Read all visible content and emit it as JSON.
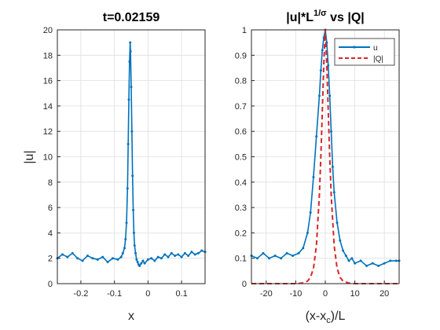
{
  "colors": {
    "series_u": "#0072BD",
    "series_q": "#D62728",
    "axis": "#262626",
    "grid": "#dfdfdf"
  },
  "chart_data": [
    {
      "type": "line",
      "title": "t=0.02159",
      "xlabel": "x",
      "ylabel": "|u|",
      "xlim": [
        -0.27,
        0.17
      ],
      "ylim": [
        0,
        20
      ],
      "xticks": [
        -0.2,
        -0.1,
        0,
        0.1
      ],
      "xtick_labels": [
        "-0.2",
        "-0.1",
        "0",
        "0.1"
      ],
      "yticks": [
        0,
        2,
        4,
        6,
        8,
        10,
        12,
        14,
        16,
        18,
        20
      ],
      "ytick_labels": [
        "0",
        "2",
        "4",
        "6",
        "8",
        "10",
        "12",
        "14",
        "16",
        "18",
        "20"
      ],
      "grid": true,
      "series": [
        {
          "marker": "dot",
          "x": [
            -0.27,
            -0.255,
            -0.24,
            -0.225,
            -0.21,
            -0.195,
            -0.18,
            -0.165,
            -0.15,
            -0.135,
            -0.12,
            -0.105,
            -0.09,
            -0.08,
            -0.075,
            -0.07,
            -0.067,
            -0.064,
            -0.061,
            -0.059,
            -0.057,
            -0.055,
            -0.053,
            -0.052,
            -0.05,
            -0.048,
            -0.046,
            -0.044,
            -0.042,
            -0.04,
            -0.037,
            -0.034,
            -0.031,
            -0.028,
            -0.025,
            -0.02,
            -0.015,
            -0.01,
            0.0,
            0.01,
            0.02,
            0.03,
            0.04,
            0.05,
            0.06,
            0.07,
            0.08,
            0.09,
            0.1,
            0.11,
            0.12,
            0.13,
            0.14,
            0.15,
            0.16,
            0.17
          ],
          "y": [
            2.0,
            2.3,
            2.1,
            2.4,
            2.0,
            1.8,
            2.2,
            2.0,
            1.9,
            2.1,
            1.7,
            2.0,
            1.9,
            2.1,
            2.4,
            2.8,
            3.5,
            4.8,
            7.5,
            11.0,
            14.5,
            17.5,
            19.0,
            18.3,
            15.5,
            12.0,
            8.5,
            5.8,
            4.0,
            3.0,
            2.4,
            1.9,
            1.7,
            1.5,
            1.4,
            1.6,
            1.8,
            1.6,
            1.9,
            2.0,
            1.8,
            2.1,
            2.0,
            2.3,
            2.1,
            2.4,
            2.2,
            2.3,
            2.1,
            2.4,
            2.2,
            2.5,
            2.3,
            2.4,
            2.6,
            2.5
          ]
        }
      ]
    },
    {
      "type": "line",
      "title": "|u|*L",
      "title_superscript": "1/σ",
      "title_suffix": " vs |Q|",
      "xlabel": "(x-x",
      "xlabel_subscript": "c",
      "xlabel_suffix": ")/L",
      "ylabel": "",
      "xlim": [
        -25,
        25
      ],
      "ylim": [
        0,
        1
      ],
      "xticks": [
        -20,
        -10,
        0,
        10,
        20
      ],
      "xtick_labels": [
        "-20",
        "-10",
        "0",
        "10",
        "20"
      ],
      "yticks": [
        0,
        0.1,
        0.2,
        0.3,
        0.4,
        0.5,
        0.6,
        0.7,
        0.8,
        0.9,
        1
      ],
      "ytick_labels": [
        "0",
        "0.1",
        "0.2",
        "0.3",
        "0.4",
        "0.5",
        "0.6",
        "0.7",
        "0.8",
        "0.9",
        "1"
      ],
      "grid": true,
      "legend_placement": "top-right",
      "series": [
        {
          "name": "u",
          "style": "solid",
          "marker": "dot",
          "x": [
            -25,
            -23,
            -21,
            -19,
            -17,
            -15,
            -13,
            -11,
            -9,
            -7.5,
            -6,
            -5,
            -4,
            -3,
            -2,
            -1.5,
            -1,
            -0.5,
            0,
            0.5,
            1,
            1.5,
            2,
            2.5,
            3,
            4,
            5,
            6,
            7,
            8,
            9,
            10,
            12,
            14,
            16,
            18,
            20,
            22,
            24,
            25
          ],
          "y": [
            0.11,
            0.1,
            0.12,
            0.1,
            0.11,
            0.1,
            0.12,
            0.11,
            0.12,
            0.14,
            0.2,
            0.28,
            0.42,
            0.58,
            0.74,
            0.84,
            0.92,
            0.97,
            1.0,
            0.95,
            0.86,
            0.74,
            0.6,
            0.46,
            0.36,
            0.24,
            0.17,
            0.13,
            0.11,
            0.09,
            0.1,
            0.08,
            0.09,
            0.07,
            0.08,
            0.07,
            0.08,
            0.09,
            0.09,
            0.09
          ]
        },
        {
          "name": "|Q|",
          "style": "dashed",
          "x": [
            -25,
            -15,
            -10,
            -8,
            -6,
            -5,
            -4,
            -3,
            -2,
            -1.5,
            -1,
            -0.5,
            0,
            0.5,
            1,
            1.5,
            2,
            3,
            4,
            5,
            6,
            8,
            10,
            15,
            25
          ],
          "y": [
            0,
            0,
            0.0,
            0.002,
            0.01,
            0.025,
            0.06,
            0.15,
            0.35,
            0.5,
            0.68,
            0.87,
            1.0,
            0.87,
            0.68,
            0.5,
            0.35,
            0.15,
            0.06,
            0.025,
            0.01,
            0.002,
            0.0,
            0,
            0
          ]
        }
      ]
    }
  ]
}
